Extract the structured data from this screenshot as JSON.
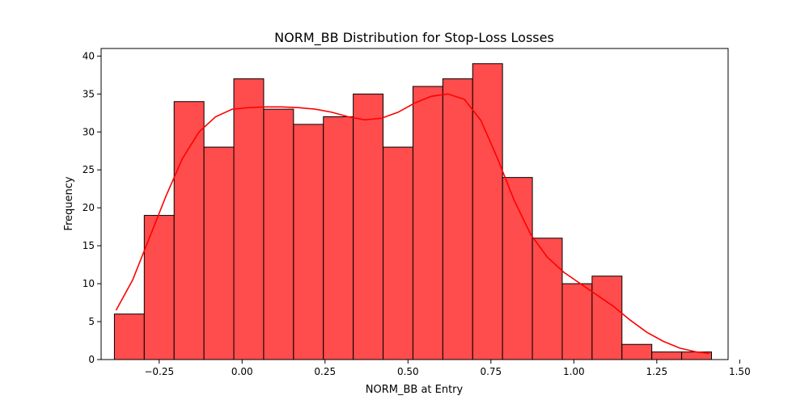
{
  "chart_data": {
    "type": "bar",
    "title": "NORM_BB Distribution for Stop-Loss Losses",
    "xlabel": "NORM_BB at Entry",
    "ylabel": "Frequency",
    "xlim": [
      -0.425,
      1.465
    ],
    "ylim": [
      0,
      41
    ],
    "xticks": [
      -0.25,
      0.0,
      0.25,
      0.5,
      0.75,
      1.0,
      1.25,
      1.5
    ],
    "xtick_labels": [
      "−0.25",
      "0.00",
      "0.25",
      "0.50",
      "0.75",
      "1.00",
      "1.25",
      "1.50"
    ],
    "yticks": [
      0,
      5,
      10,
      15,
      20,
      25,
      30,
      35,
      40
    ],
    "ytick_labels": [
      "0",
      "5",
      "10",
      "15",
      "20",
      "25",
      "30",
      "35",
      "40"
    ],
    "bin_edges": [
      -0.385,
      -0.295,
      -0.205,
      -0.115,
      -0.025,
      0.065,
      0.155,
      0.245,
      0.335,
      0.425,
      0.515,
      0.605,
      0.695,
      0.785,
      0.875,
      0.965,
      1.055,
      1.145,
      1.235,
      1.325,
      1.415
    ],
    "counts": [
      6,
      19,
      34,
      28,
      37,
      33,
      31,
      32,
      35,
      28,
      36,
      37,
      39,
      24,
      16,
      10,
      11,
      2,
      1,
      1
    ],
    "kde": {
      "x": [
        -0.38,
        -0.33,
        -0.28,
        -0.23,
        -0.18,
        -0.13,
        -0.08,
        -0.03,
        0.02,
        0.07,
        0.12,
        0.17,
        0.22,
        0.27,
        0.32,
        0.37,
        0.42,
        0.47,
        0.52,
        0.57,
        0.62,
        0.67,
        0.72,
        0.77,
        0.82,
        0.87,
        0.92,
        0.97,
        1.02,
        1.07,
        1.12,
        1.17,
        1.22,
        1.27,
        1.32,
        1.37,
        1.41
      ],
      "y": [
        6.5,
        10.5,
        16.0,
        21.5,
        26.5,
        30.0,
        32.0,
        33.0,
        33.2,
        33.3,
        33.3,
        33.2,
        33.0,
        32.6,
        32.0,
        31.6,
        31.8,
        32.6,
        33.8,
        34.7,
        35.0,
        34.3,
        31.5,
        26.5,
        21.0,
        16.5,
        13.5,
        11.5,
        10.0,
        8.5,
        7.0,
        5.2,
        3.6,
        2.4,
        1.5,
        1.0,
        0.8
      ]
    },
    "colors": {
      "bar_fill": "#ff4c4c",
      "bar_edge": "#000000",
      "kde_line": "#ff0000"
    },
    "grid": false,
    "legend": "none"
  }
}
